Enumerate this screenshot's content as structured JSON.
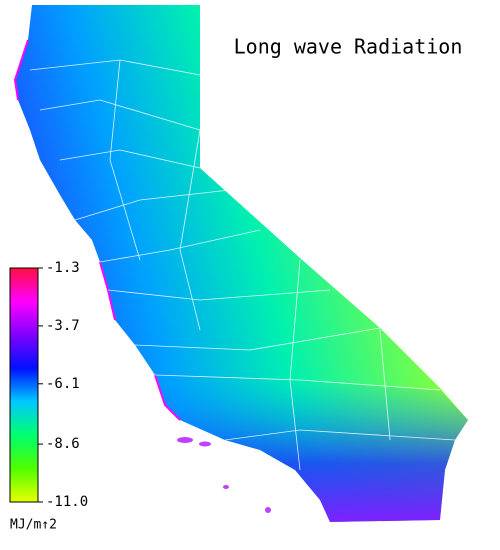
{
  "title": "Long wave Radiation",
  "colorbar": {
    "unit": "MJ/m↑2",
    "lim": [
      -11,
      -1.3
    ],
    "ticks": [
      -1.3,
      -3.7,
      -6.1,
      -8.6,
      {
        "value": -11,
        "label": "-11.0"
      }
    ],
    "colors": [
      "#ff1040",
      "#ff00ff",
      "#8000ff",
      "#0010ff",
      "#00c8ff",
      "#00ff70",
      "#50ff00",
      "#e8ff00"
    ]
  }
}
